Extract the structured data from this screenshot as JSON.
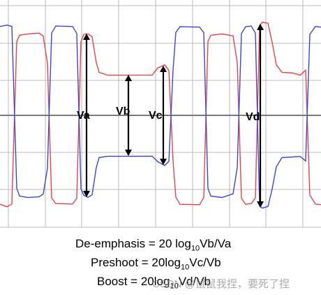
{
  "diagram": {
    "labels": {
      "va": "Va",
      "vb": "Vb",
      "vc": "Vc",
      "vd": "Vd"
    },
    "trace_colors": {
      "positive": "#e8424a",
      "negative": "#3b45d6",
      "grid": "#a9a9a9",
      "centerline": "#7a7a7a",
      "arrow": "#000000"
    }
  },
  "formulas": {
    "deemphasis": {
      "prefix": "De-emphasis = 20 log",
      "sub": "10",
      "suffix": "Vb/Va"
    },
    "preshoot": {
      "prefix": "Preshoot = 20log",
      "sub": "10",
      "suffix": "Vc/Vb"
    },
    "boost": {
      "prefix": "Boost = 20log",
      "sub": "10",
      "suffix": "Vd/Vb"
    }
  },
  "watermark": "CSDN @鼠鼠我捏，要死了捏"
}
